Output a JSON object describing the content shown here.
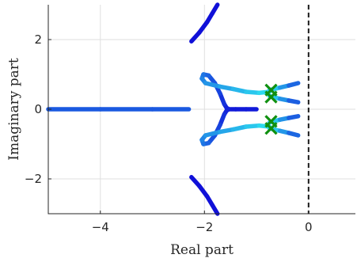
{
  "chart_data": {
    "type": "root-locus",
    "xlabel": "Real part",
    "ylabel": "Imaginary part",
    "xlim": [
      -5,
      0.9
    ],
    "ylim": [
      -3,
      3
    ],
    "xticks": [
      -4,
      -2,
      0
    ],
    "yticks": [
      -2,
      0,
      2
    ],
    "grid": true,
    "reference_line": {
      "x": 0,
      "style": "dashed",
      "color": "#1a1a1a"
    },
    "colors": {
      "start": "#1010d8",
      "end": "#2de0f0",
      "marker": "#109010"
    },
    "branches": [
      {
        "points": [
          [
            -5.0,
            0.0
          ],
          [
            -4.0,
            0.0
          ],
          [
            -3.0,
            0.0
          ],
          [
            -2.3,
            0.0
          ]
        ],
        "gradient": [
          0.35,
          0.35
        ]
      },
      {
        "points": [
          [
            -2.25,
            1.95
          ],
          [
            -2.1,
            2.2
          ],
          [
            -1.95,
            2.5
          ],
          [
            -1.85,
            2.75
          ],
          [
            -1.75,
            3.0
          ]
        ],
        "gradient": [
          0.0,
          0.0
        ]
      },
      {
        "points": [
          [
            -2.25,
            -1.95
          ],
          [
            -2.1,
            -2.2
          ],
          [
            -1.95,
            -2.5
          ],
          [
            -1.85,
            -2.75
          ],
          [
            -1.75,
            -3.0
          ]
        ],
        "gradient": [
          0.0,
          0.0
        ]
      },
      {
        "points": [
          [
            -1.0,
            0.0
          ],
          [
            -1.2,
            0.0
          ],
          [
            -1.4,
            0.0
          ],
          [
            -1.52,
            0.0
          ]
        ],
        "gradient": [
          0.05,
          0.05
        ]
      },
      {
        "points": [
          [
            -1.55,
            -0.02
          ],
          [
            -1.62,
            0.15
          ],
          [
            -1.7,
            0.45
          ],
          [
            -1.8,
            0.75
          ],
          [
            -1.92,
            0.97
          ],
          [
            -2.02,
            1.0
          ],
          [
            -2.05,
            0.88
          ],
          [
            -1.98,
            0.75
          ],
          [
            -1.7,
            0.65
          ],
          [
            -1.45,
            0.58
          ],
          [
            -1.2,
            0.5
          ],
          [
            -0.95,
            0.47
          ],
          [
            -0.75,
            0.5
          ]
        ],
        "gradient": [
          0.05,
          1.0
        ]
      },
      {
        "points": [
          [
            -1.55,
            0.02
          ],
          [
            -1.62,
            -0.15
          ],
          [
            -1.7,
            -0.45
          ],
          [
            -1.8,
            -0.75
          ],
          [
            -1.92,
            -0.97
          ],
          [
            -2.02,
            -1.0
          ],
          [
            -2.05,
            -0.88
          ],
          [
            -1.98,
            -0.75
          ],
          [
            -1.7,
            -0.65
          ],
          [
            -1.45,
            -0.58
          ],
          [
            -1.2,
            -0.5
          ],
          [
            -0.95,
            -0.47
          ],
          [
            -0.75,
            -0.5
          ]
        ],
        "gradient": [
          0.05,
          1.0
        ]
      },
      {
        "points": [
          [
            -0.75,
            0.55
          ],
          [
            -0.55,
            0.62
          ],
          [
            -0.38,
            0.68
          ],
          [
            -0.2,
            0.75
          ]
        ],
        "gradient": [
          1.0,
          0.3
        ]
      },
      {
        "points": [
          [
            -0.75,
            0.38
          ],
          [
            -0.55,
            0.3
          ],
          [
            -0.38,
            0.25
          ],
          [
            -0.2,
            0.2
          ]
        ],
        "gradient": [
          1.0,
          0.25
        ]
      },
      {
        "points": [
          [
            -0.75,
            -0.38
          ],
          [
            -0.55,
            -0.3
          ],
          [
            -0.38,
            -0.25
          ],
          [
            -0.2,
            -0.2
          ]
        ],
        "gradient": [
          1.0,
          0.25
        ]
      },
      {
        "points": [
          [
            -0.75,
            -0.55
          ],
          [
            -0.55,
            -0.62
          ],
          [
            -0.38,
            -0.68
          ],
          [
            -0.2,
            -0.75
          ]
        ],
        "gradient": [
          1.0,
          0.3
        ]
      }
    ],
    "markers": [
      {
        "x": -0.72,
        "y": 0.55
      },
      {
        "x": -0.72,
        "y": 0.35
      },
      {
        "x": -0.72,
        "y": -0.35
      },
      {
        "x": -0.72,
        "y": -0.55
      }
    ]
  }
}
